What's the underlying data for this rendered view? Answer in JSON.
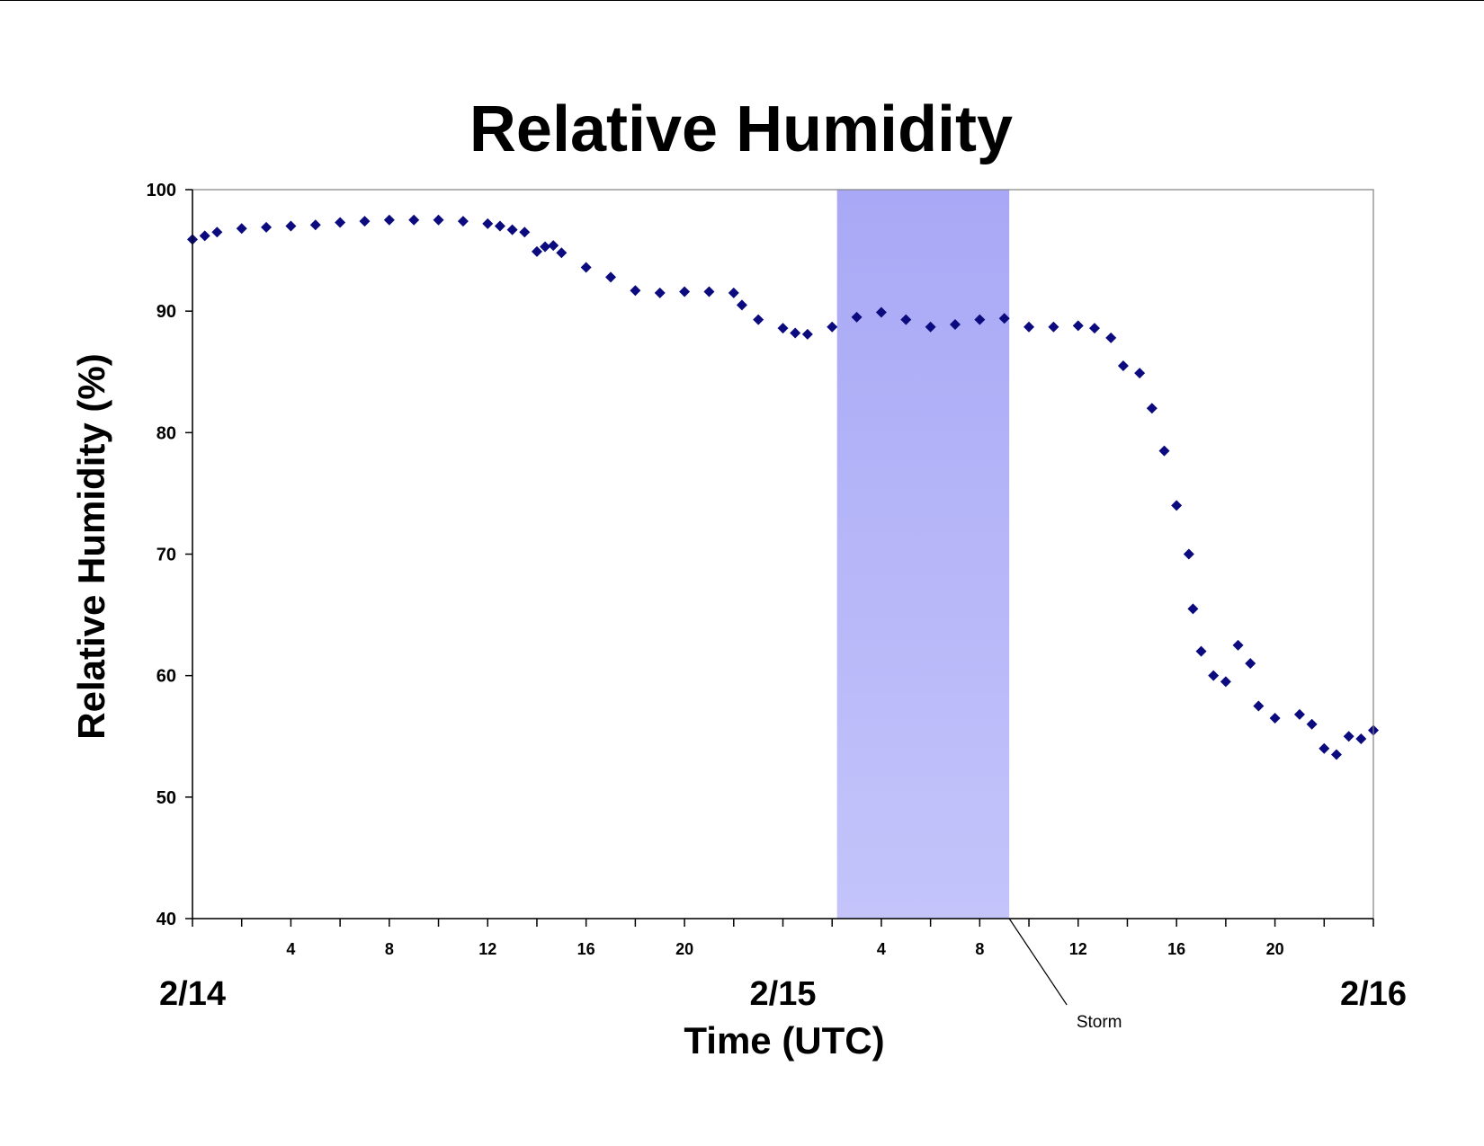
{
  "chart_data": {
    "type": "scatter",
    "title": "Relative Humidity",
    "xlabel": "Time (UTC)",
    "ylabel": "Relative Humidity (%)",
    "ylim": [
      40,
      100
    ],
    "xlim": [
      "2/14 00:00",
      "2/16 00:00"
    ],
    "yticks": [
      40,
      50,
      60,
      70,
      80,
      90,
      100
    ],
    "hour_ticks": [
      {
        "day": "2/14",
        "hour": 4,
        "label": "4"
      },
      {
        "day": "2/14",
        "hour": 8,
        "label": "8"
      },
      {
        "day": "2/14",
        "hour": 12,
        "label": "12"
      },
      {
        "day": "2/14",
        "hour": 16,
        "label": "16"
      },
      {
        "day": "2/14",
        "hour": 20,
        "label": "20"
      },
      {
        "day": "2/15",
        "hour": 4,
        "label": "4"
      },
      {
        "day": "2/15",
        "hour": 8,
        "label": "8"
      },
      {
        "day": "2/15",
        "hour": 12,
        "label": "12"
      },
      {
        "day": "2/15",
        "hour": 16,
        "label": "16"
      },
      {
        "day": "2/15",
        "hour": 20,
        "label": "20"
      }
    ],
    "date_labels": [
      "2/14",
      "2/15",
      "2/16"
    ],
    "grid": false,
    "legend": "none",
    "marker": "diamond",
    "marker_color": "#0b0b7f",
    "shaded_region": {
      "label": "Storm",
      "start": "2/15 02:12",
      "end": "2/15 09:12",
      "color_top": "#a8a8f6",
      "color_bottom": "#c4c4fb"
    },
    "series": [
      {
        "values": [
          [
            "2/14 00:00",
            95.9
          ],
          [
            "2/14 00:30",
            96.2
          ],
          [
            "2/14 01:00",
            96.5
          ],
          [
            "2/14 02:00",
            96.8
          ],
          [
            "2/14 03:00",
            96.9
          ],
          [
            "2/14 04:00",
            97.0
          ],
          [
            "2/14 05:00",
            97.1
          ],
          [
            "2/14 06:00",
            97.3
          ],
          [
            "2/14 07:00",
            97.4
          ],
          [
            "2/14 08:00",
            97.5
          ],
          [
            "2/14 09:00",
            97.5
          ],
          [
            "2/14 10:00",
            97.5
          ],
          [
            "2/14 11:00",
            97.4
          ],
          [
            "2/14 12:00",
            97.2
          ],
          [
            "2/14 12:30",
            97.0
          ],
          [
            "2/14 13:00",
            96.7
          ],
          [
            "2/14 13:30",
            96.5
          ],
          [
            "2/14 14:00",
            94.9
          ],
          [
            "2/14 14:20",
            95.3
          ],
          [
            "2/14 14:40",
            95.4
          ],
          [
            "2/14 15:00",
            94.8
          ],
          [
            "2/14 16:00",
            93.6
          ],
          [
            "2/14 17:00",
            92.8
          ],
          [
            "2/14 18:00",
            91.7
          ],
          [
            "2/14 19:00",
            91.5
          ],
          [
            "2/14 20:00",
            91.6
          ],
          [
            "2/14 21:00",
            91.6
          ],
          [
            "2/14 22:00",
            91.5
          ],
          [
            "2/14 22:20",
            90.5
          ],
          [
            "2/14 23:00",
            89.3
          ],
          [
            "2/15 00:00",
            88.6
          ],
          [
            "2/15 00:30",
            88.2
          ],
          [
            "2/15 01:00",
            88.1
          ],
          [
            "2/15 02:00",
            88.7
          ],
          [
            "2/15 03:00",
            89.5
          ],
          [
            "2/15 04:00",
            89.9
          ],
          [
            "2/15 05:00",
            89.3
          ],
          [
            "2/15 06:00",
            88.7
          ],
          [
            "2/15 07:00",
            88.9
          ],
          [
            "2/15 08:00",
            89.3
          ],
          [
            "2/15 09:00",
            89.4
          ],
          [
            "2/15 10:00",
            88.7
          ],
          [
            "2/15 11:00",
            88.7
          ],
          [
            "2/15 12:00",
            88.8
          ],
          [
            "2/15 12:40",
            88.6
          ],
          [
            "2/15 13:20",
            87.8
          ],
          [
            "2/15 13:50",
            85.5
          ],
          [
            "2/15 14:30",
            84.9
          ],
          [
            "2/15 15:00",
            82.0
          ],
          [
            "2/15 15:30",
            78.5
          ],
          [
            "2/15 16:00",
            74.0
          ],
          [
            "2/15 16:30",
            70.0
          ],
          [
            "2/15 16:40",
            65.5
          ],
          [
            "2/15 17:00",
            62.0
          ],
          [
            "2/15 17:30",
            60.0
          ],
          [
            "2/15 18:00",
            59.5
          ],
          [
            "2/15 18:30",
            62.5
          ],
          [
            "2/15 19:00",
            61.0
          ],
          [
            "2/15 19:20",
            57.5
          ],
          [
            "2/15 20:00",
            56.5
          ],
          [
            "2/15 21:00",
            56.8
          ],
          [
            "2/15 21:30",
            56.0
          ],
          [
            "2/15 22:00",
            54.0
          ],
          [
            "2/15 22:30",
            53.5
          ],
          [
            "2/15 23:00",
            55.0
          ],
          [
            "2/15 23:30",
            54.8
          ],
          [
            "2/16 00:00",
            55.5
          ]
        ]
      }
    ],
    "annotations": [
      {
        "text": "Storm"
      }
    ]
  }
}
